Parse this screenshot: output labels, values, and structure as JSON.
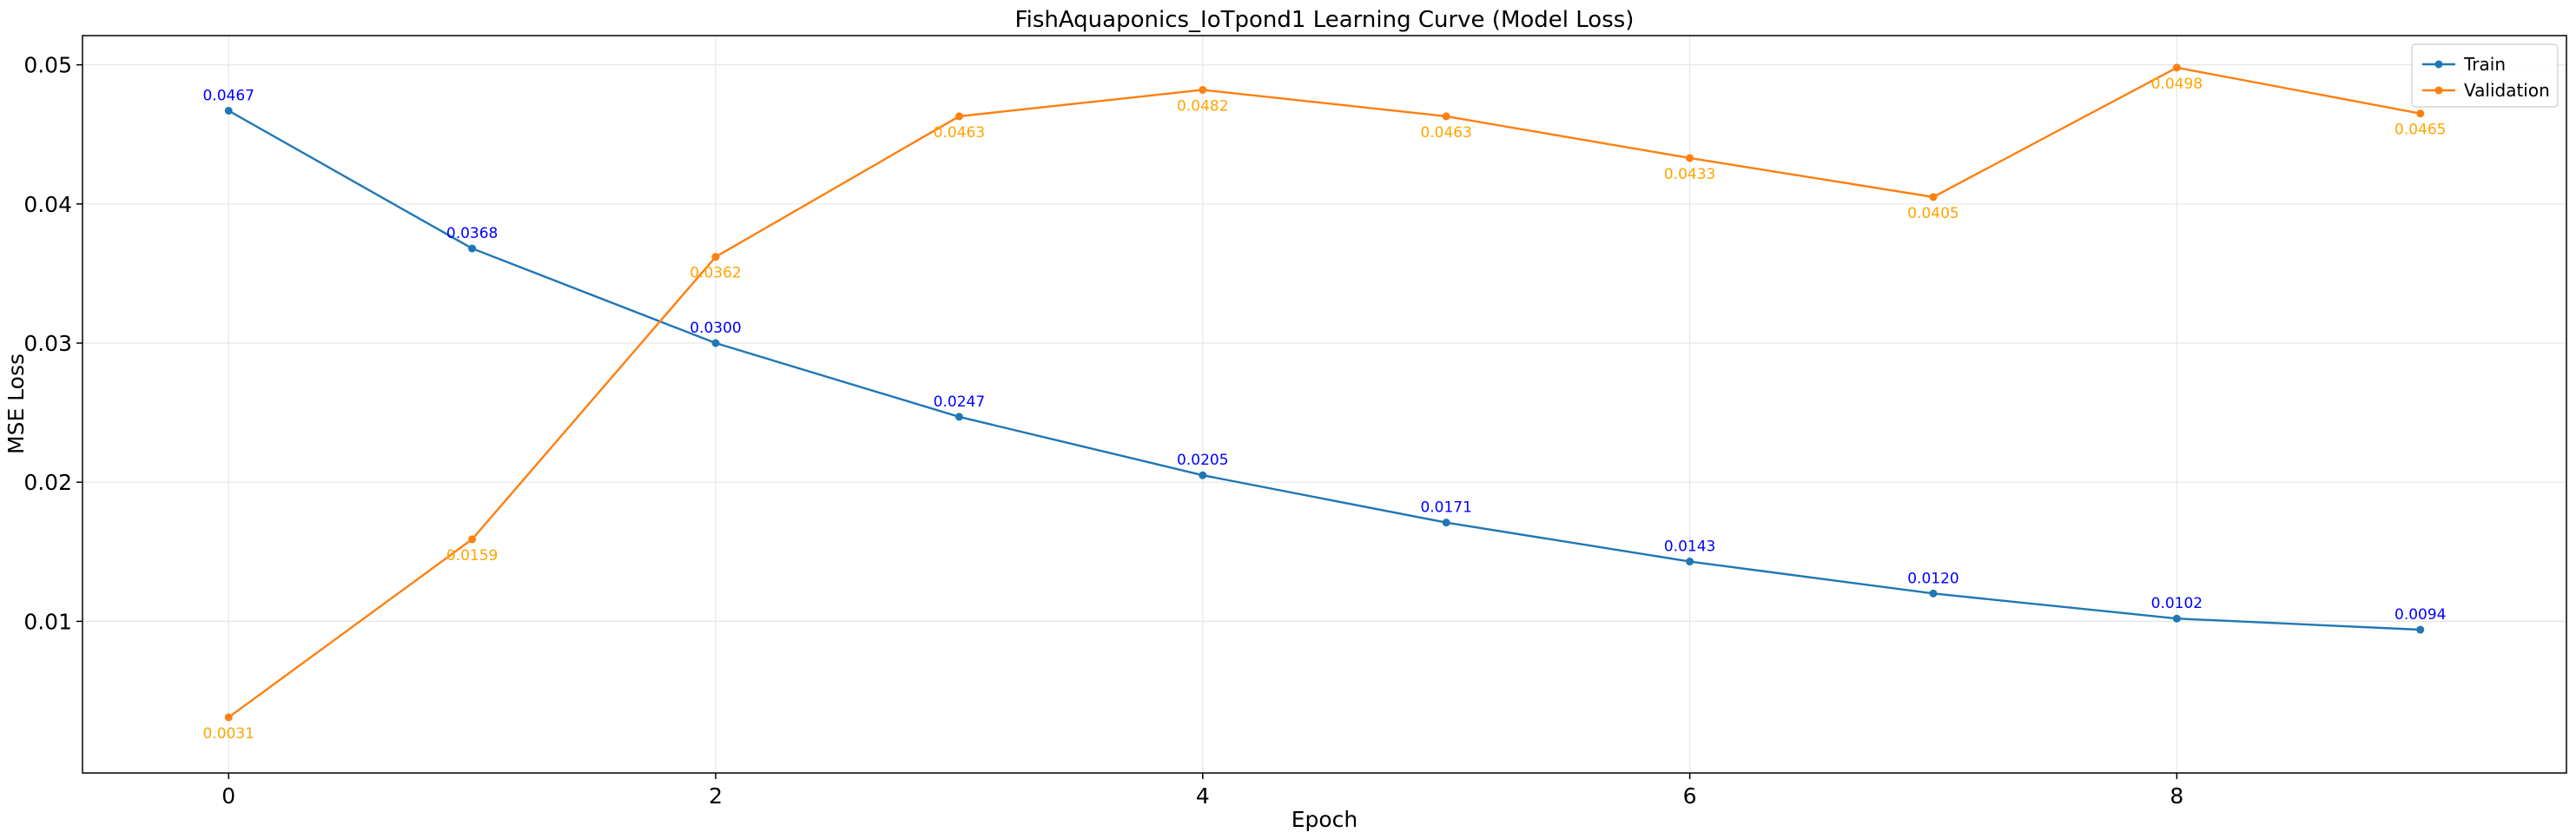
{
  "chart_data": {
    "type": "line",
    "title": "FishAquaponics_IoTpond1 Learning Curve (Model Loss)",
    "xlabel": "Epoch",
    "ylabel": "MSE Loss",
    "x": [
      0,
      1,
      2,
      3,
      4,
      5,
      6,
      7,
      8,
      9
    ],
    "xlim": [
      -0.6,
      9.6
    ],
    "ylim": [
      -0.0009,
      0.0521
    ],
    "xticks": [
      0,
      2,
      4,
      6,
      8
    ],
    "xtick_labels": [
      "0",
      "2",
      "4",
      "6",
      "8"
    ],
    "yticks": [
      0.01,
      0.02,
      0.03,
      0.04,
      0.05
    ],
    "ytick_labels": [
      "0.01",
      "0.02",
      "0.03",
      "0.04",
      "0.05"
    ],
    "grid": true,
    "legend_position": "top-right",
    "series": [
      {
        "name": "Train",
        "color": "#1f77b4",
        "label_color": "#0000ff",
        "label_position": "above",
        "values": [
          0.0467,
          0.0368,
          0.03,
          0.0247,
          0.0205,
          0.0171,
          0.0143,
          0.012,
          0.0102,
          0.0094
        ],
        "labels": [
          "0.0467",
          "0.0368",
          "0.0300",
          "0.0247",
          "0.0205",
          "0.0171",
          "0.0143",
          "0.0120",
          "0.0102",
          "0.0094"
        ]
      },
      {
        "name": "Validation",
        "color": "#ff7f0e",
        "label_color": "#ffa500",
        "label_position": "below",
        "values": [
          0.0031,
          0.0159,
          0.0362,
          0.0463,
          0.0482,
          0.0463,
          0.0433,
          0.0405,
          0.0498,
          0.0465
        ],
        "labels": [
          "0.0031",
          "0.0159",
          "0.0362",
          "0.0463",
          "0.0482",
          "0.0463",
          "0.0433",
          "0.0405",
          "0.0498",
          "0.0465"
        ]
      }
    ]
  }
}
